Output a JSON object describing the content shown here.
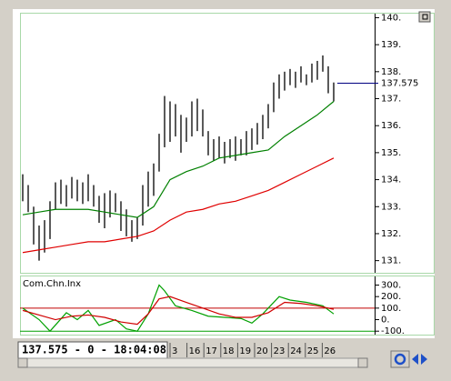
{
  "chart_data": [
    {
      "type": "ohlc",
      "color": "#000000",
      "high": [
        134.2,
        133.8,
        133.0,
        132.3,
        132.5,
        133.2,
        133.9,
        134.0,
        133.8,
        134.1,
        134.0,
        133.9,
        134.2,
        133.8,
        133.4,
        133.5,
        133.6,
        133.5,
        133.2,
        132.9,
        132.5,
        132.6,
        133.8,
        134.3,
        134.6,
        135.7,
        137.1,
        136.9,
        136.8,
        136.4,
        136.3,
        136.9,
        137.0,
        136.6,
        135.8,
        135.5,
        135.6,
        135.4,
        135.5,
        135.6,
        135.5,
        135.8,
        135.9,
        136.1,
        136.4,
        136.8,
        137.6,
        137.9,
        138.0,
        138.1,
        138.0,
        138.2,
        137.9,
        138.3,
        138.4,
        138.6,
        138.2,
        137.6
      ],
      "low": [
        133.2,
        132.8,
        131.6,
        131.0,
        131.3,
        131.8,
        132.9,
        133.1,
        133.0,
        133.3,
        133.2,
        133.1,
        133.2,
        133.0,
        132.4,
        132.2,
        132.6,
        132.8,
        132.1,
        131.9,
        131.7,
        131.8,
        132.3,
        133.0,
        133.4,
        134.3,
        135.2,
        135.4,
        135.6,
        135.0,
        135.4,
        135.6,
        135.8,
        135.6,
        134.9,
        134.7,
        134.8,
        134.6,
        134.8,
        134.7,
        134.9,
        134.9,
        135.1,
        135.3,
        135.5,
        135.9,
        136.5,
        137.0,
        137.3,
        137.5,
        137.4,
        137.6,
        137.5,
        137.6,
        137.7,
        138.0,
        137.2,
        136.9
      ],
      "overlays": [
        {
          "color": "#008000",
          "x": [
            0,
            3,
            6,
            9,
            12,
            15,
            18,
            21,
            24,
            27,
            30,
            33,
            36,
            39,
            42,
            45,
            48,
            51,
            54,
            57
          ],
          "values": [
            132.7,
            132.8,
            132.9,
            132.9,
            132.9,
            132.8,
            132.7,
            132.6,
            133.0,
            134.0,
            134.3,
            134.5,
            134.8,
            134.9,
            135.0,
            135.1,
            135.6,
            136.0,
            136.4,
            136.9
          ]
        },
        {
          "color": "#e00000",
          "x": [
            0,
            3,
            6,
            9,
            12,
            15,
            18,
            21,
            24,
            27,
            30,
            33,
            36,
            39,
            42,
            45,
            48,
            51,
            54,
            57
          ],
          "values": [
            131.3,
            131.4,
            131.5,
            131.6,
            131.7,
            131.7,
            131.8,
            131.9,
            132.1,
            132.5,
            132.8,
            132.9,
            133.1,
            133.2,
            133.4,
            133.6,
            133.9,
            134.2,
            134.5,
            134.8
          ]
        }
      ],
      "last_price": 137.575,
      "last_color": "#000080",
      "xlim": [
        -0.5,
        64.5
      ],
      "ylim": [
        130.55,
        140.15
      ],
      "yticks": [
        {
          "value": 131,
          "label": "131."
        },
        {
          "value": 132,
          "label": "132."
        },
        {
          "value": 133,
          "label": "133."
        },
        {
          "value": 134,
          "label": "134."
        },
        {
          "value": 135,
          "label": "135."
        },
        {
          "value": 136,
          "label": "136."
        },
        {
          "value": 137,
          "label": "137."
        },
        {
          "value": 138,
          "label": "138."
        },
        {
          "value": 139,
          "label": "139."
        },
        {
          "value": 140,
          "label": "140."
        }
      ]
    },
    {
      "type": "line",
      "title": "Com.Chn.Inx",
      "series": [
        {
          "color": "#00a000",
          "x": [
            0,
            3,
            5,
            8,
            10,
            12,
            14,
            17,
            19,
            21,
            23,
            25,
            26,
            28,
            31,
            34,
            37,
            40,
            42,
            44,
            47,
            49,
            52,
            55,
            57
          ],
          "values": [
            100,
            0,
            -100,
            60,
            0,
            80,
            -50,
            0,
            -80,
            -100,
            50,
            300,
            250,
            120,
            80,
            30,
            20,
            10,
            -30,
            50,
            200,
            170,
            150,
            120,
            50
          ]
        },
        {
          "color": "#d00000",
          "x": [
            0,
            3,
            6,
            9,
            12,
            15,
            18,
            21,
            23,
            25,
            27,
            30,
            33,
            36,
            39,
            42,
            45,
            48,
            51,
            54,
            57
          ],
          "values": [
            80,
            40,
            0,
            30,
            40,
            20,
            -20,
            -40,
            50,
            180,
            200,
            150,
            100,
            50,
            20,
            20,
            60,
            150,
            140,
            120,
            90
          ]
        }
      ],
      "levels": [
        {
          "value": 100,
          "color": "#c00000"
        },
        {
          "value": -100,
          "color": "#00a000"
        }
      ],
      "xlim": [
        -0.5,
        64.5
      ],
      "ylim": [
        -130,
        375
      ],
      "yticks": [
        {
          "value": -100,
          "label": "-100."
        },
        {
          "value": 0,
          "label": "0."
        },
        {
          "value": 100,
          "label": "100."
        },
        {
          "value": 200,
          "label": "200."
        },
        {
          "value": 300,
          "label": "300."
        }
      ]
    }
  ],
  "timeline": {
    "status": "137.575 - 0 - 18:04:08",
    "labels": [
      "3",
      "16",
      "17",
      "18",
      "19",
      "20",
      "23",
      "24",
      "25",
      "26"
    ]
  }
}
